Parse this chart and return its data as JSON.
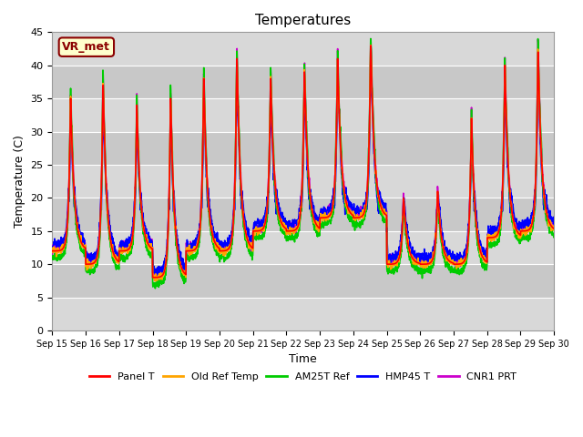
{
  "title": "Temperatures",
  "xlabel": "Time",
  "ylabel": "Temperature (C)",
  "ylim": [
    0,
    45
  ],
  "yticks": [
    0,
    5,
    10,
    15,
    20,
    25,
    30,
    35,
    40,
    45
  ],
  "x_tick_labels": [
    "Sep 15",
    "Sep 16",
    "Sep 17",
    "Sep 18",
    "Sep 19",
    "Sep 20",
    "Sep 21",
    "Sep 22",
    "Sep 23",
    "Sep 24",
    "Sep 25",
    "Sep 26",
    "Sep 27",
    "Sep 28",
    "Sep 29",
    "Sep 30"
  ],
  "annotation_text": "VR_met",
  "annotation_color": "#8B0000",
  "annotation_bg": "#FFFFCC",
  "plot_bg": "#DCDCDC",
  "grid_color": "#C0C0C0",
  "lines": {
    "Panel T": {
      "color": "#FF0000",
      "lw": 1.2
    },
    "Old Ref Temp": {
      "color": "#FFA500",
      "lw": 1.2
    },
    "AM25T Ref": {
      "color": "#00CC00",
      "lw": 1.2
    },
    "HMP45 T": {
      "color": "#0000FF",
      "lw": 1.2
    },
    "CNR1 PRT": {
      "color": "#CC00CC",
      "lw": 1.2
    }
  },
  "legend_labels": [
    "Panel T",
    "Old Ref Temp",
    "AM25T Ref",
    "HMP45 T",
    "CNR1 PRT"
  ],
  "legend_colors": [
    "#FF0000",
    "#FFA500",
    "#00CC00",
    "#0000FF",
    "#CC00CC"
  ],
  "n_days": 15,
  "points_per_day": 144
}
